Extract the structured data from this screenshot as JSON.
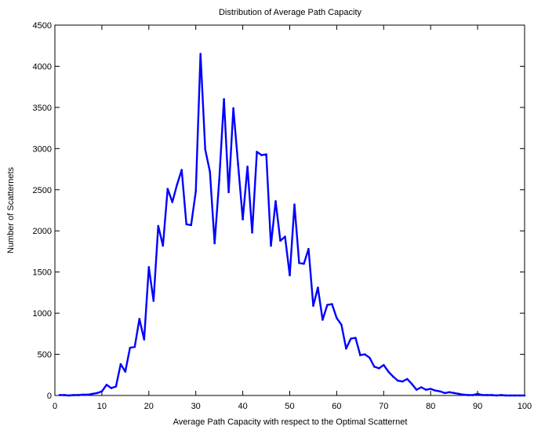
{
  "chart_data": {
    "type": "line",
    "title": "Distribution of Average Path Capacity",
    "xlabel": "Average Path Capacity with respect to the Optimal Scatternet",
    "ylabel": "Number of Scatternets",
    "xlim": [
      0,
      100
    ],
    "ylim": [
      0,
      4500
    ],
    "xticks": [
      0,
      10,
      20,
      30,
      40,
      50,
      60,
      70,
      80,
      90,
      100
    ],
    "yticks": [
      0,
      500,
      1000,
      1500,
      2000,
      2500,
      3000,
      3500,
      4000,
      4500
    ],
    "grid": false,
    "legend": "none",
    "series": [
      {
        "color": "#0000ff",
        "x": [
          1,
          2,
          3,
          4,
          5,
          6,
          7,
          8,
          9,
          10,
          11,
          12,
          13,
          14,
          15,
          16,
          17,
          18,
          19,
          20,
          21,
          22,
          23,
          24,
          25,
          26,
          27,
          28,
          29,
          30,
          31,
          32,
          33,
          34,
          35,
          36,
          37,
          38,
          39,
          40,
          41,
          42,
          43,
          44,
          45,
          46,
          47,
          48,
          49,
          50,
          51,
          52,
          53,
          54,
          55,
          56,
          57,
          58,
          59,
          60,
          61,
          62,
          63,
          64,
          65,
          66,
          67,
          68,
          69,
          70,
          71,
          72,
          73,
          74,
          75,
          76,
          77,
          78,
          79,
          80,
          81,
          82,
          83,
          84,
          85,
          86,
          87,
          88,
          89,
          90,
          91,
          92,
          93,
          94,
          95,
          96,
          97,
          98,
          99,
          100
        ],
        "values": [
          5,
          5,
          0,
          5,
          5,
          10,
          10,
          20,
          30,
          50,
          130,
          90,
          110,
          380,
          290,
          580,
          590,
          930,
          680,
          1560,
          1150,
          2060,
          1820,
          2510,
          2350,
          2560,
          2740,
          2080,
          2070,
          2480,
          4150,
          2990,
          2720,
          1850,
          2620,
          3600,
          2470,
          3490,
          2810,
          2140,
          2780,
          1980,
          2960,
          2920,
          2930,
          1820,
          2360,
          1880,
          1930,
          1460,
          2320,
          1610,
          1600,
          1780,
          1090,
          1310,
          920,
          1100,
          1110,
          940,
          860,
          570,
          690,
          700,
          490,
          500,
          460,
          350,
          330,
          370,
          290,
          230,
          180,
          170,
          200,
          140,
          70,
          100,
          70,
          80,
          60,
          50,
          30,
          40,
          30,
          20,
          10,
          5,
          5,
          20,
          5,
          5,
          5,
          0,
          5,
          0,
          0,
          0,
          0,
          0
        ]
      }
    ]
  }
}
